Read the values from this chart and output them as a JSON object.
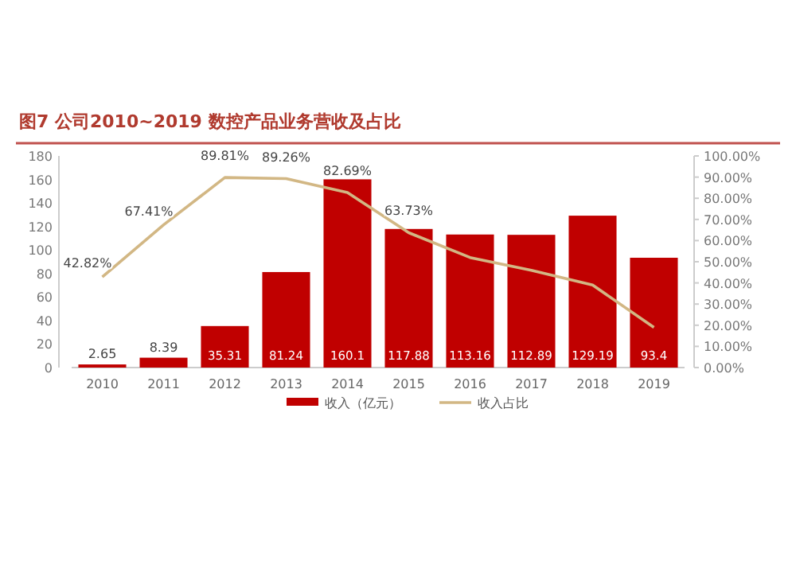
{
  "chart_data": {
    "type": "bar",
    "title": "图7  公司2010~2019 数控产品业务营收及占比",
    "categories": [
      "2010",
      "2011",
      "2012",
      "2013",
      "2014",
      "2015",
      "2016",
      "2017",
      "2018",
      "2019"
    ],
    "series": [
      {
        "name": "收入（亿元）",
        "type": "bar",
        "color": "#c00000",
        "values": [
          2.65,
          8.39,
          35.31,
          81.24,
          160.1,
          117.88,
          113.16,
          112.89,
          129.19,
          93.4
        ],
        "value_labels": [
          "2.65",
          "8.39",
          "35.31",
          "81.24",
          "160.1",
          "117.88",
          "113.16",
          "112.89",
          "129.19",
          "93.4"
        ]
      },
      {
        "name": "收入占比",
        "type": "line",
        "axis": "y2",
        "color": "#d2b784",
        "values": [
          42.82,
          67.41,
          89.81,
          89.26,
          82.69,
          63.73,
          52,
          46,
          39,
          19
        ],
        "value_labels": [
          "42.82%",
          "67.41%",
          "89.81%",
          "89.26%",
          "82.69%",
          "63.73%",
          null,
          null,
          null,
          null
        ]
      }
    ],
    "ylim": [
      0,
      180
    ],
    "yticks": [
      0,
      20,
      40,
      60,
      80,
      100,
      120,
      140,
      160,
      180
    ],
    "y2lim": [
      0,
      100
    ],
    "y2ticks": [
      {
        "value": 0,
        "label": "0.00%"
      },
      {
        "value": 10,
        "label": "10.00%"
      },
      {
        "value": 20,
        "label": "20.00%"
      },
      {
        "value": 30,
        "label": "30.00%"
      },
      {
        "value": 40,
        "label": "40.00%"
      },
      {
        "value": 50,
        "label": "50.00%"
      },
      {
        "value": 60,
        "label": "60.00%"
      },
      {
        "value": 70,
        "label": "70.00%"
      },
      {
        "value": 80,
        "label": "80.00%"
      },
      {
        "value": 90,
        "label": "90.00%"
      },
      {
        "value": 100,
        "label": "100.00%"
      }
    ],
    "legend": "bottom"
  }
}
